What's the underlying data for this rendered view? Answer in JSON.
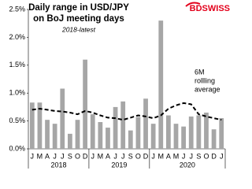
{
  "chart_data": {
    "type": "bar",
    "title": [
      "Daily range in USD/JPY",
      "on BoJ meeting days"
    ],
    "subtitle": "2018-latest",
    "category_groups": [
      {
        "label": "2018",
        "categories": [
          "J",
          "M",
          "A",
          "J",
          "J",
          "S",
          "O",
          "D"
        ]
      },
      {
        "label": "2019",
        "categories": [
          "J",
          "M",
          "A",
          "J",
          "J",
          "S",
          "O",
          "D"
        ]
      },
      {
        "label": "2020",
        "categories": [
          "J",
          "M",
          "A",
          "M",
          "J",
          "J",
          "S",
          "O",
          "D",
          "J"
        ]
      }
    ],
    "series": [
      {
        "type": "bar",
        "color": "#a6a6a6",
        "values": [
          0.83,
          0.83,
          0.52,
          0.45,
          1.08,
          0.27,
          0.52,
          1.6,
          0.62,
          0.48,
          0.38,
          0.75,
          0.85,
          0.33,
          0.57,
          0.9,
          0.45,
          2.3,
          0.6,
          0.45,
          0.4,
          0.58,
          0.6,
          0.65,
          0.35,
          0.55
        ]
      },
      {
        "type": "line",
        "color": "#000000",
        "dashed": true,
        "values": [
          0.7,
          0.72,
          0.7,
          0.68,
          0.67,
          0.65,
          0.62,
          0.68,
          0.65,
          0.6,
          0.56,
          0.55,
          0.52,
          0.56,
          0.6,
          0.58,
          0.55,
          0.6,
          0.72,
          0.78,
          0.82,
          0.8,
          0.62,
          0.58,
          0.55,
          0.52
        ]
      }
    ],
    "annotation": [
      "6M",
      "rollling",
      "average"
    ],
    "ylim": [
      0,
      2.5
    ],
    "yticks": [
      {
        "value": 0,
        "label": "0.0%"
      },
      {
        "value": 0.5,
        "label": "0.5%"
      },
      {
        "value": 1,
        "label": "1.0%"
      },
      {
        "value": 1.5,
        "label": "1.5%"
      },
      {
        "value": 2,
        "label": "2.0%"
      },
      {
        "value": 2.5,
        "label": "2.5%"
      }
    ],
    "grid": false
  },
  "logo": "BDSWISS"
}
